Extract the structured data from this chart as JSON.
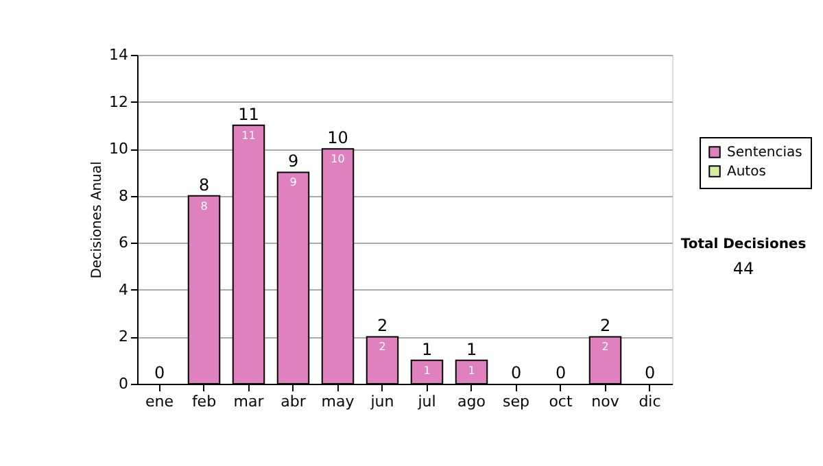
{
  "chart_data": {
    "type": "bar",
    "ylabel": "Decisiones Anual",
    "categories": [
      "ene",
      "feb",
      "mar",
      "abr",
      "may",
      "jun",
      "jul",
      "ago",
      "sep",
      "oct",
      "nov",
      "dic"
    ],
    "series": [
      {
        "name": "Sentencias",
        "color": "#df80bf",
        "values": [
          0,
          8,
          11,
          9,
          10,
          2,
          1,
          1,
          0,
          0,
          2,
          0
        ],
        "value_labels": [
          null,
          "8",
          "11",
          "9",
          "10",
          "2",
          "1",
          "1",
          null,
          null,
          "2",
          null
        ]
      },
      {
        "name": "Autos",
        "color": "#d6ee9e",
        "values": [
          0,
          0,
          0,
          0,
          0,
          0,
          0,
          0,
          0,
          0,
          0,
          0
        ]
      }
    ],
    "totals": [
      "0",
      "8",
      "11",
      "9",
      "10",
      "2",
      "1",
      "1",
      "0",
      "0",
      "2",
      "0"
    ],
    "ylim": [
      0,
      14
    ],
    "yticks": [
      0,
      2,
      4,
      6,
      8,
      10,
      12,
      14
    ],
    "grid": "y",
    "legend": "right",
    "annotations": [
      "Total Decisiones",
      "44"
    ]
  }
}
